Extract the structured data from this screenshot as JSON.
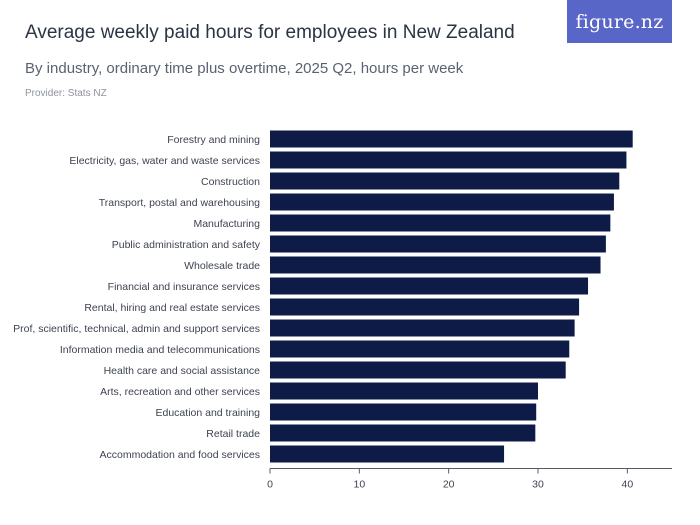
{
  "header": {
    "title": "Average weekly paid hours for employees in New Zealand",
    "subtitle": "By industry, ordinary time plus overtime, 2025 Q2, hours per week",
    "provider": "Provider: Stats NZ",
    "logo_text": "figure.nz"
  },
  "colors": {
    "bar": "#0f1b47",
    "logo_bg": "#5867c7",
    "axis": "#555b66"
  },
  "chart_data": {
    "type": "bar",
    "orientation": "horizontal",
    "title": "Average weekly paid hours for employees in New Zealand",
    "subtitle": "By industry, ordinary time plus overtime, 2025 Q2, hours per week",
    "xlabel": "",
    "ylabel": "",
    "xlim": [
      0,
      45
    ],
    "ticks": [
      0,
      10,
      20,
      30,
      40
    ],
    "grid": false,
    "categories": [
      "Forestry and mining",
      "Electricity, gas, water and waste services",
      "Construction",
      "Transport, postal and warehousing",
      "Manufacturing",
      "Public administration and safety",
      "Wholesale trade",
      "Financial and insurance services",
      "Rental, hiring and real estate services",
      "Prof, scientific, technical, admin and support services",
      "Information media and telecommunications",
      "Health care and social assistance",
      "Arts, recreation and other services",
      "Education and training",
      "Retail trade",
      "Accommodation and food services"
    ],
    "values": [
      40.6,
      39.9,
      39.1,
      38.5,
      38.1,
      37.6,
      37.0,
      35.6,
      34.6,
      34.1,
      33.5,
      33.1,
      30.0,
      29.8,
      29.7,
      26.2
    ]
  }
}
